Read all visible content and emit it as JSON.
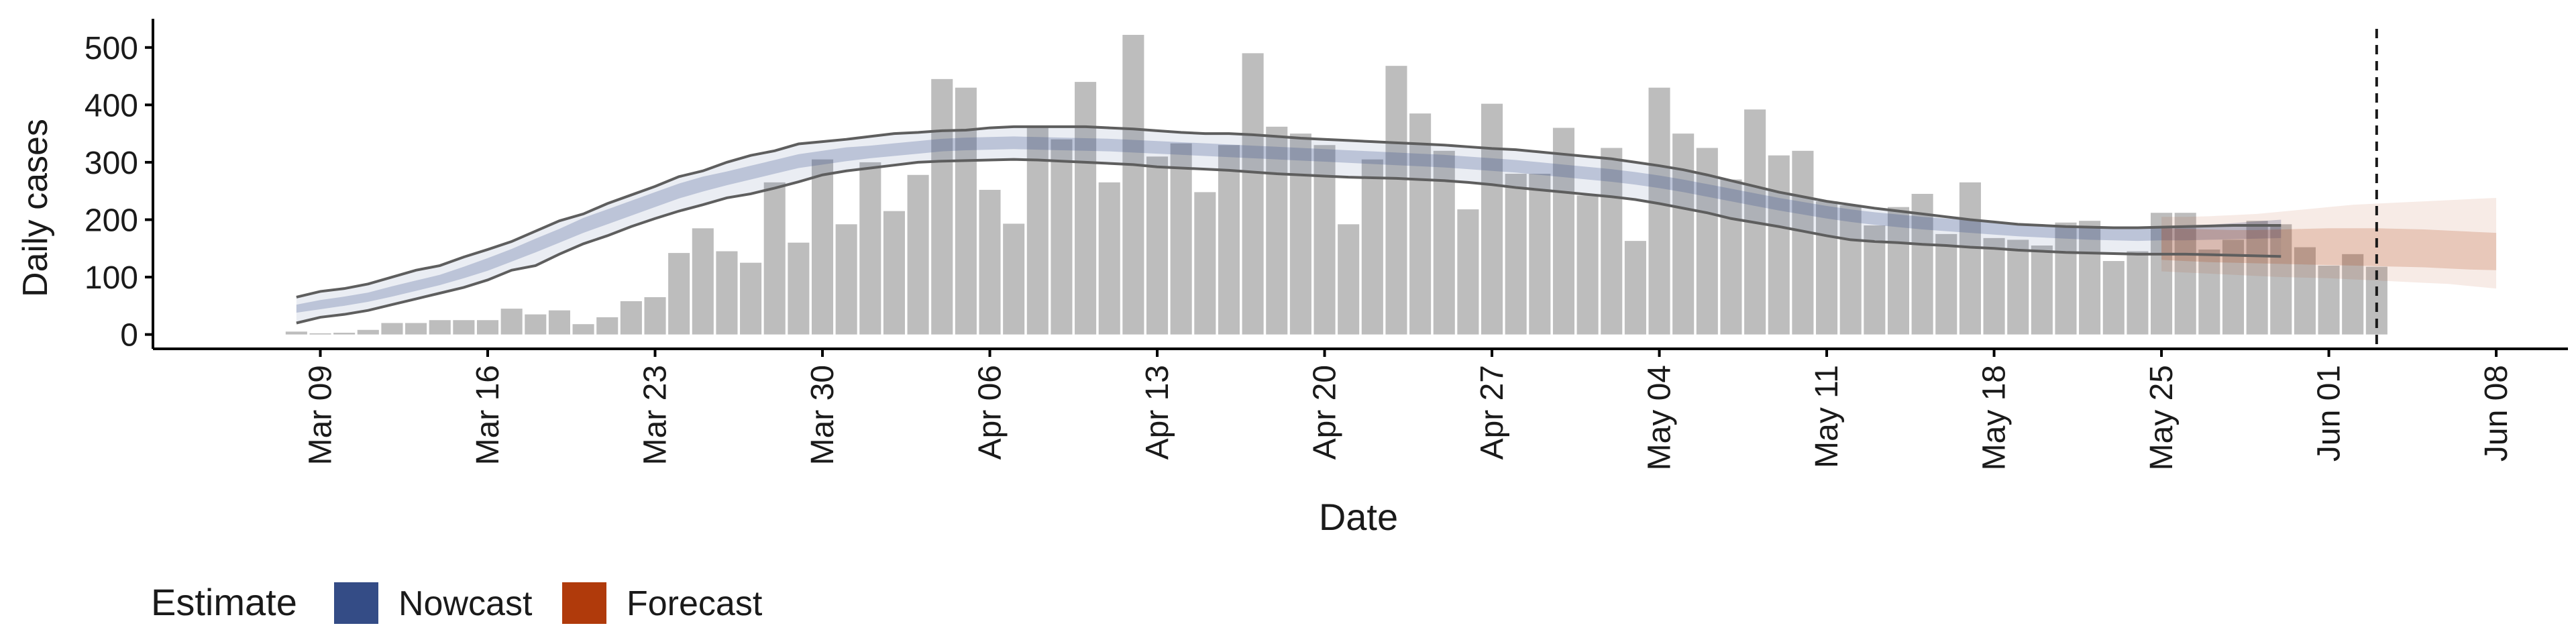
{
  "chart_data": {
    "type": "bar",
    "ylabel": "Daily cases",
    "xlabel": "Date",
    "y_ticks": [
      0,
      100,
      200,
      300,
      400,
      500
    ],
    "ylim": [
      -25,
      550
    ],
    "x_ticks": [
      {
        "date": "2020-03-09",
        "label": "Mar 09"
      },
      {
        "date": "2020-03-16",
        "label": "Mar 16"
      },
      {
        "date": "2020-03-23",
        "label": "Mar 23"
      },
      {
        "date": "2020-03-30",
        "label": "Mar 30"
      },
      {
        "date": "2020-04-06",
        "label": "Apr 06"
      },
      {
        "date": "2020-04-13",
        "label": "Apr 13"
      },
      {
        "date": "2020-04-20",
        "label": "Apr 20"
      },
      {
        "date": "2020-04-27",
        "label": "Apr 27"
      },
      {
        "date": "2020-05-04",
        "label": "May 04"
      },
      {
        "date": "2020-05-11",
        "label": "May 11"
      },
      {
        "date": "2020-05-18",
        "label": "May 18"
      },
      {
        "date": "2020-05-25",
        "label": "May 25"
      },
      {
        "date": "2020-06-01",
        "label": "Jun 01"
      },
      {
        "date": "2020-06-08",
        "label": "Jun 08"
      }
    ],
    "xlim": [
      "2020-03-02",
      "2020-06-11"
    ],
    "bars": {
      "start_date": "2020-03-08",
      "values": [
        5,
        2,
        3,
        8,
        20,
        20,
        25,
        25,
        25,
        45,
        35,
        42,
        18,
        30,
        58,
        65,
        142,
        185,
        145,
        125,
        265,
        160,
        305,
        192,
        300,
        215,
        278,
        445,
        430,
        252,
        193,
        362,
        340,
        440,
        265,
        522,
        310,
        333,
        248,
        330,
        490,
        362,
        350,
        330,
        192,
        305,
        468,
        385,
        320,
        218,
        402,
        280,
        280,
        360,
        242,
        325,
        163,
        430,
        350,
        325,
        270,
        392,
        312,
        320,
        232,
        225,
        190,
        222,
        245,
        175,
        265,
        168,
        165,
        155,
        195,
        198,
        128,
        145,
        212,
        212,
        148,
        165,
        198,
        192,
        152,
        120,
        140,
        118
      ]
    },
    "nowcast": {
      "start_date": "2020-03-08",
      "median": [
        45,
        52,
        58,
        65,
        75,
        85,
        95,
        108,
        122,
        138,
        155,
        172,
        190,
        205,
        220,
        235,
        250,
        262,
        272,
        282,
        292,
        302,
        308,
        314,
        318,
        322,
        326,
        330,
        332,
        333,
        334,
        333,
        332,
        331,
        330,
        328,
        326,
        324,
        322,
        320,
        318,
        316,
        314,
        312,
        310,
        308,
        306,
        304,
        302,
        299,
        296,
        293,
        289,
        285,
        281,
        277,
        272,
        266,
        259,
        251,
        243,
        235,
        227,
        220,
        213,
        207,
        202,
        198,
        194,
        191,
        188,
        185,
        182,
        180,
        178,
        176,
        175,
        174,
        175,
        176,
        178,
        180,
        182,
        184
      ],
      "inner": {
        "lower": [
          38,
          44,
          50,
          57,
          66,
          76,
          86,
          98,
          111,
          127,
          143,
          160,
          177,
          192,
          207,
          222,
          237,
          249,
          260,
          270,
          280,
          290,
          296,
          302,
          307,
          311,
          315,
          319,
          321,
          322,
          323,
          322,
          321,
          320,
          319,
          317,
          315,
          313,
          311,
          309,
          307,
          305,
          303,
          301,
          299,
          297,
          295,
          293,
          291,
          288,
          285,
          282,
          278,
          274,
          270,
          266,
          261,
          255,
          248,
          240,
          232,
          224,
          216,
          209,
          202,
          196,
          191,
          187,
          183,
          180,
          177,
          174,
          171,
          169,
          167,
          165,
          164,
          163,
          164,
          164,
          165,
          166,
          167,
          168
        ],
        "upper": [
          52,
          60,
          66,
          73,
          84,
          94,
          104,
          118,
          133,
          149,
          167,
          184,
          203,
          218,
          233,
          248,
          263,
          275,
          284,
          294,
          304,
          314,
          320,
          326,
          329,
          333,
          337,
          341,
          343,
          344,
          345,
          344,
          343,
          342,
          341,
          339,
          337,
          335,
          333,
          331,
          329,
          327,
          325,
          323,
          321,
          319,
          317,
          315,
          313,
          310,
          307,
          304,
          300,
          296,
          292,
          288,
          283,
          277,
          270,
          262,
          254,
          246,
          238,
          231,
          224,
          218,
          213,
          209,
          205,
          202,
          199,
          196,
          193,
          191,
          189,
          187,
          186,
          185,
          186,
          188,
          191,
          194,
          197,
          200
        ]
      },
      "outer": {
        "lower": [
          20,
          30,
          35,
          42,
          52,
          62,
          72,
          82,
          95,
          112,
          120,
          140,
          158,
          172,
          188,
          202,
          215,
          226,
          238,
          245,
          255,
          266,
          278,
          285,
          290,
          295,
          300,
          302,
          303,
          304,
          305,
          304,
          302,
          300,
          298,
          296,
          292,
          290,
          288,
          286,
          283,
          280,
          278,
          276,
          274,
          273,
          272,
          270,
          268,
          265,
          261,
          256,
          252,
          248,
          244,
          240,
          235,
          228,
          220,
          212,
          202,
          195,
          188,
          180,
          172,
          165,
          162,
          160,
          157,
          155,
          152,
          150,
          147,
          145,
          143,
          142,
          141,
          140,
          140,
          140,
          139,
          138,
          137,
          136
        ],
        "upper": [
          65,
          75,
          80,
          88,
          100,
          112,
          120,
          135,
          148,
          162,
          180,
          198,
          210,
          228,
          243,
          258,
          275,
          285,
          300,
          312,
          320,
          332,
          336,
          340,
          345,
          350,
          352,
          355,
          356,
          360,
          362,
          362,
          362,
          362,
          360,
          358,
          355,
          352,
          350,
          350,
          348,
          345,
          342,
          340,
          338,
          336,
          334,
          332,
          330,
          327,
          324,
          322,
          318,
          314,
          310,
          306,
          300,
          294,
          287,
          278,
          268,
          258,
          248,
          240,
          232,
          226,
          220,
          215,
          210,
          205,
          200,
          196,
          192,
          190,
          188,
          187,
          186,
          186,
          187,
          188,
          189,
          190,
          190,
          190
        ]
      }
    },
    "forecast": {
      "start_date": "2020-05-25",
      "median": [
        160,
        158,
        157,
        156,
        155,
        155,
        154,
        154,
        153,
        152,
        152,
        151,
        150,
        149,
        148
      ],
      "inner": {
        "lower": [
          130,
          128,
          126,
          125,
          124,
          123,
          122,
          121,
          120,
          119,
          118,
          117,
          115,
          113,
          112
        ],
        "upper": [
          185,
          184,
          183,
          182,
          182,
          183,
          184,
          185,
          185,
          185,
          184,
          183,
          181,
          179,
          177
        ]
      },
      "outer": {
        "lower": [
          110,
          108,
          106,
          104,
          102,
          100,
          99,
          98,
          96,
          94,
          92,
          90,
          88,
          84,
          80
        ],
        "upper": [
          205,
          205,
          206,
          208,
          210,
          214,
          218,
          222,
          226,
          228,
          230,
          232,
          234,
          236,
          238
        ]
      }
    },
    "vline_date": "2020-06-03",
    "legend": {
      "title": "Estimate",
      "position": "bottom-left",
      "items": [
        {
          "label": "Nowcast",
          "color": "#344C86"
        },
        {
          "label": "Forecast",
          "color": "#B03A0B"
        }
      ]
    },
    "colors": {
      "bar": "#BDBDBD",
      "nowcast": "#344C86",
      "forecast": "#B03A0B",
      "ci_line": "#5E5E5E",
      "vline": "#1a1a1a"
    }
  }
}
